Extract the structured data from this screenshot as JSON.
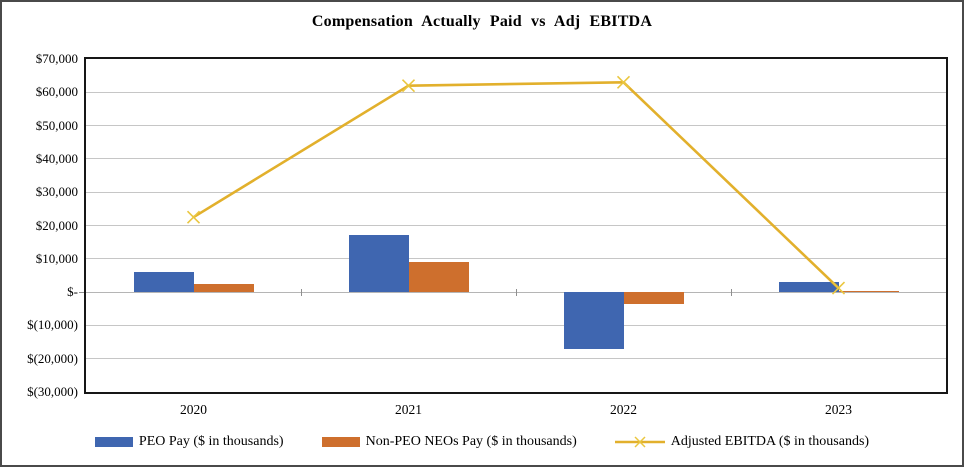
{
  "chart_data": {
    "type": "combo",
    "title": "Compensation Actually Paid vs Adj EBITDA",
    "categories": [
      "2020",
      "2021",
      "2022",
      "2023"
    ],
    "series": [
      {
        "name": "PEO Pay ($ in thousands)",
        "type": "bar",
        "color": "#3F66B0",
        "values": [
          6000,
          17000,
          -17000,
          3000
        ]
      },
      {
        "name": "Non-PEO NEOs Pay ($ in thousands)",
        "type": "bar",
        "color": "#CE6F2D",
        "values": [
          2500,
          9000,
          -3500,
          300
        ]
      },
      {
        "name": "Adjusted EBITDA ($ in thousands)",
        "type": "line",
        "marker": "x",
        "color": "#E2B02C",
        "marker_color": "#EAC63F",
        "values": [
          22500,
          62000,
          63000,
          1200
        ]
      }
    ],
    "ylim": [
      -30000,
      70000
    ],
    "ytick_step": 10000,
    "ytick_labels": [
      "$70,000",
      "$60,000",
      "$50,000",
      "$40,000",
      "$30,000",
      "$20,000",
      "$10,000",
      "$-",
      "$(10,000)",
      "$(20,000)",
      "$(30,000)"
    ],
    "grid": true,
    "gridline_color": "#C6C6C6",
    "plot_border_color": "#161616",
    "legend_position": "bottom"
  }
}
